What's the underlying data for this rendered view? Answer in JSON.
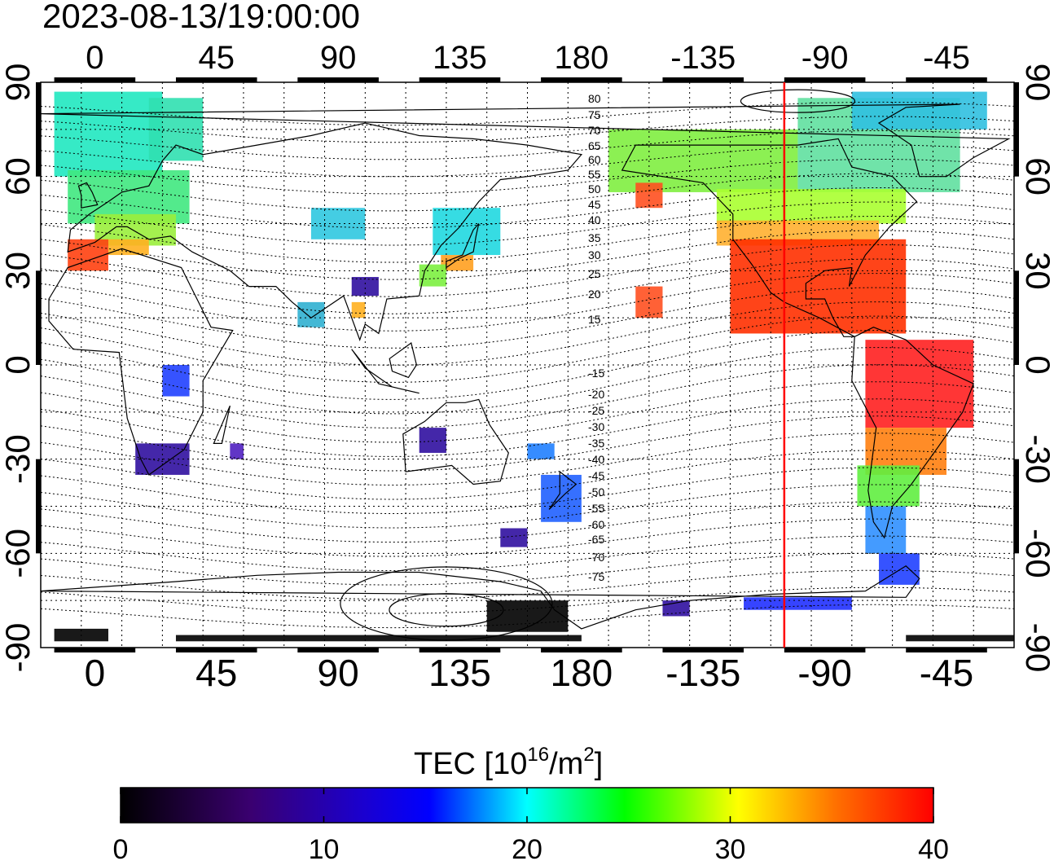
{
  "timestamp": "2023-08-13/19:00:00",
  "x_tick_labels": [
    "0",
    "45",
    "90",
    "135",
    "180",
    "-135",
    "-90",
    "-45"
  ],
  "y_tick_labels": [
    "90",
    "60",
    "30",
    "0",
    "-30",
    "-60",
    "-90"
  ],
  "contour_labels_north": [
    "80",
    "75",
    "70",
    "65",
    "60",
    "55",
    "50",
    "45",
    "40",
    "35",
    "30",
    "25",
    "20",
    "15"
  ],
  "contour_labels_south": [
    "-15",
    "-20",
    "-25",
    "-30",
    "-35",
    "-40",
    "-45",
    "-50",
    "-55",
    "-60",
    "-65",
    "-70",
    "-75"
  ],
  "colorbar": {
    "title_prefix": "TEC  [10",
    "title_exp1": "16",
    "title_mid": "/m",
    "title_exp2": "2",
    "title_suffix": "]",
    "tick_labels": [
      "0",
      "10",
      "20",
      "30",
      "40"
    ],
    "range": [
      0,
      40
    ]
  },
  "marker_color": "#ff0000",
  "map_data": {
    "type": "heatmap",
    "projection": "equirectangular",
    "lon_axis_range_deg": [
      -20,
      340
    ],
    "lat_axis_range_deg": [
      -90,
      90
    ],
    "marker_meridian_lon_deg": -105,
    "colormap": [
      "#000000",
      "#3a0070",
      "#0000ff",
      "#00ffff",
      "#00ff00",
      "#ffff00",
      "#ff0000"
    ]
  }
}
